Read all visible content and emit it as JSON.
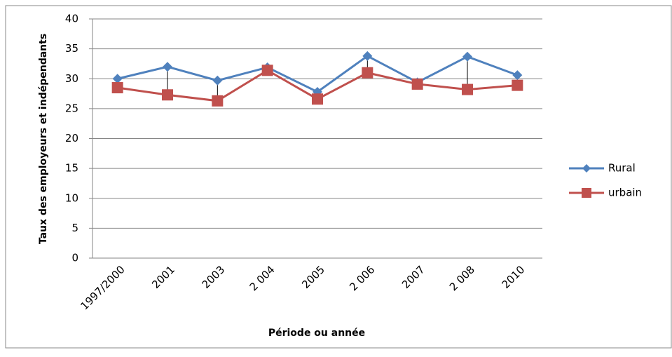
{
  "chart_data": {
    "type": "line",
    "x_label": "Période ou année",
    "y_label": "Taux des employeurs et indépendants",
    "categories": [
      "1997/2000",
      "2001",
      "2003",
      "2 004",
      "2005",
      "2 006",
      "2007",
      "2 008",
      "2010"
    ],
    "series": [
      {
        "name": "Rural",
        "color": "#4f81bd",
        "marker": "diamond",
        "values": [
          30.0,
          32.0,
          29.7,
          31.9,
          27.8,
          33.8,
          29.4,
          33.7,
          30.6
        ]
      },
      {
        "name": "urbain",
        "color": "#c0504d",
        "marker": "square",
        "values": [
          28.5,
          27.3,
          26.3,
          31.4,
          26.6,
          31.0,
          29.1,
          28.2,
          28.9
        ]
      }
    ],
    "ylim": [
      0,
      40
    ],
    "yticks": [
      0,
      5,
      10,
      15,
      20,
      25,
      30,
      35,
      40
    ],
    "grid": true,
    "high_low_lines": true,
    "legend": "right"
  }
}
